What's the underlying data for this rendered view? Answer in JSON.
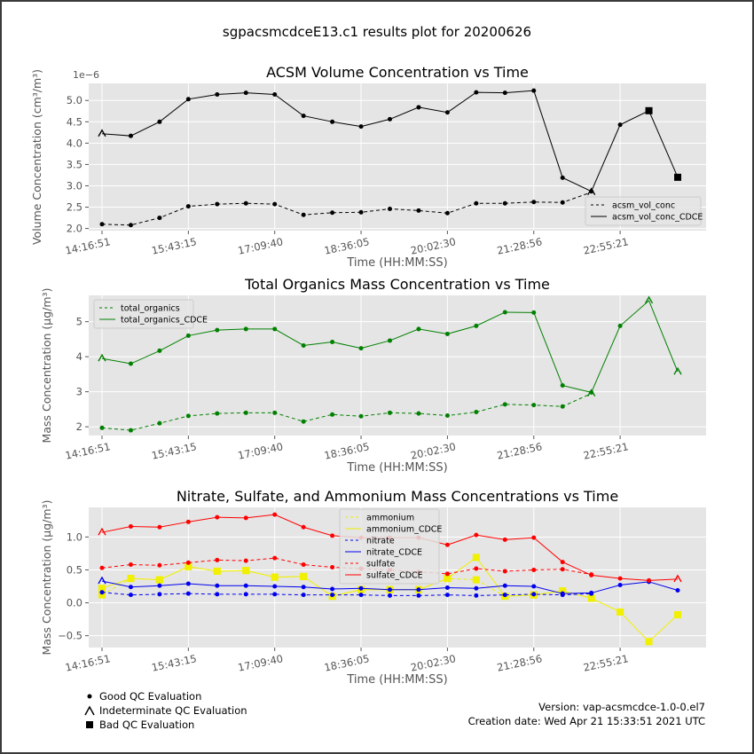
{
  "figure": {
    "suptitle": "sgpacsmcdceE13.c1 results plot for 20200626",
    "qc_legend": [
      {
        "marker": "dot",
        "label": "Good QC Evaluation"
      },
      {
        "marker": "caret",
        "label": "Indeterminate QC Evaluation"
      },
      {
        "marker": "square",
        "label": "Bad QC Evaluation"
      }
    ],
    "version": "Version: vap-acsmcdce-1.0-0.el7",
    "creation_date": "Creation date: Wed Apr 21 15:33:51 2021 UTC"
  },
  "chart_data": [
    {
      "type": "line",
      "title": "ACSM Volume Concentration vs Time",
      "xlabel": "Time (HH:MM:SS)",
      "ylabel": "Volume Concentration (cm³/m³)",
      "offset_text": "1e−6",
      "x_tick_labels": [
        "14:16:51",
        "15:43:15",
        "17:09:40",
        "18:36:05",
        "20:02:30",
        "21:28:56",
        "22:55:21"
      ],
      "y_ticks": [
        "2.0",
        "2.5",
        "3.0",
        "3.5",
        "4.0",
        "4.5",
        "5.0"
      ],
      "ylim": [
        1.95,
        5.4
      ],
      "grid": true,
      "legend_position": "lower-right",
      "series": [
        {
          "name": "acsm_vol_conc",
          "color": "#000000",
          "dashed": true,
          "values": [
            2.1,
            2.08,
            2.25,
            2.52,
            2.57,
            2.59,
            2.57,
            2.32,
            2.37,
            2.38,
            2.46,
            2.42,
            2.36,
            2.59,
            2.59,
            2.62,
            2.61,
            2.85
          ],
          "qc": [
            "good",
            "good",
            "good",
            "good",
            "good",
            "good",
            "good",
            "good",
            "good",
            "good",
            "good",
            "good",
            "good",
            "good",
            "good",
            "good",
            "good",
            "indeterminate"
          ]
        },
        {
          "name": "acsm_vol_conc_CDCE",
          "color": "#000000",
          "dashed": false,
          "values": [
            4.22,
            4.17,
            4.5,
            5.03,
            5.14,
            5.18,
            5.14,
            4.64,
            4.5,
            4.39,
            4.56,
            4.84,
            4.72,
            5.19,
            5.18,
            5.23,
            3.19,
            2.87,
            4.43,
            4.76,
            3.2
          ],
          "qc": [
            "indeterminate",
            "good",
            "good",
            "good",
            "good",
            "good",
            "good",
            "good",
            "good",
            "good",
            "good",
            "good",
            "good",
            "good",
            "good",
            "good",
            "good",
            "good",
            "good",
            "bad",
            "bad"
          ]
        }
      ]
    },
    {
      "type": "line",
      "title": "Total Organics Mass Concentration vs Time",
      "xlabel": "Time (HH:MM:SS)",
      "ylabel": "Mass Concentration (μg/m³)",
      "x_tick_labels": [
        "14:16:51",
        "15:43:15",
        "17:09:40",
        "18:36:05",
        "20:02:30",
        "21:28:56",
        "22:55:21"
      ],
      "y_ticks": [
        "2",
        "3",
        "4",
        "5"
      ],
      "ylim": [
        1.75,
        5.75
      ],
      "grid": true,
      "legend_position": "top-left",
      "series": [
        {
          "name": "total_organics",
          "color": "#008000",
          "dashed": true,
          "values": [
            1.97,
            1.9,
            2.1,
            2.31,
            2.38,
            2.4,
            2.4,
            2.15,
            2.35,
            2.3,
            2.4,
            2.38,
            2.32,
            2.42,
            2.64,
            2.62,
            2.58,
            2.95
          ],
          "qc": [
            "good",
            "good",
            "good",
            "good",
            "good",
            "good",
            "good",
            "good",
            "good",
            "good",
            "good",
            "good",
            "good",
            "good",
            "good",
            "good",
            "good",
            "indeterminate"
          ]
        },
        {
          "name": "total_organics_CDCE",
          "color": "#008000",
          "dashed": false,
          "values": [
            3.95,
            3.8,
            4.17,
            4.6,
            4.76,
            4.79,
            4.79,
            4.32,
            4.42,
            4.24,
            4.46,
            4.79,
            4.65,
            4.88,
            5.27,
            5.26,
            3.18,
            2.98,
            4.88,
            5.6,
            3.57
          ],
          "qc": [
            "indeterminate",
            "good",
            "good",
            "good",
            "good",
            "good",
            "good",
            "good",
            "good",
            "good",
            "good",
            "good",
            "good",
            "good",
            "good",
            "good",
            "good",
            "good",
            "good",
            "indeterminate",
            "indeterminate"
          ]
        }
      ]
    },
    {
      "type": "line",
      "title": "Nitrate, Sulfate, and Ammonium Mass Concentrations vs Time",
      "xlabel": "Time (HH:MM:SS)",
      "ylabel": "Mass Concentration (μg/m³)",
      "x_tick_labels": [
        "14:16:51",
        "15:43:15",
        "17:09:40",
        "18:36:05",
        "20:02:30",
        "21:28:56",
        "22:55:21"
      ],
      "y_ticks": [
        "−0.5",
        "0.0",
        "0.5",
        "1.0"
      ],
      "ylim": [
        -0.68,
        1.45
      ],
      "grid": true,
      "legend_position": "top-center",
      "series": [
        {
          "name": "ammonium",
          "color": "#f0f000",
          "dashed": true,
          "values": [
            0.12,
            0.37,
            0.35,
            0.55,
            0.48,
            0.49,
            0.39,
            0.4,
            0.1,
            0.2,
            0.2,
            0.2,
            0.37,
            0.35,
            0.1,
            0.12,
            0.18,
            0.07
          ],
          "qc": [
            "bad",
            "bad",
            "bad",
            "bad",
            "bad",
            "bad",
            "bad",
            "bad",
            "bad",
            "bad",
            "bad",
            "bad",
            "bad",
            "bad",
            "bad",
            "bad",
            "bad",
            "bad"
          ]
        },
        {
          "name": "ammonium_CDCE",
          "color": "#f0f000",
          "dashed": false,
          "values": [
            0.22,
            0.37,
            0.35,
            0.55,
            0.48,
            0.49,
            0.39,
            0.4,
            0.1,
            0.2,
            0.2,
            0.2,
            0.37,
            0.69,
            0.1,
            0.12,
            0.18,
            0.07,
            -0.14,
            -0.59,
            -0.18
          ],
          "qc": [
            "bad",
            "bad",
            "bad",
            "bad",
            "bad",
            "bad",
            "bad",
            "bad",
            "bad",
            "bad",
            "bad",
            "bad",
            "bad",
            "bad",
            "bad",
            "bad",
            "bad",
            "bad",
            "bad",
            "bad",
            "bad"
          ]
        },
        {
          "name": "nitrate",
          "color": "#0000ee",
          "dashed": true,
          "values": [
            0.16,
            0.12,
            0.13,
            0.14,
            0.13,
            0.13,
            0.13,
            0.12,
            0.12,
            0.12,
            0.11,
            0.11,
            0.12,
            0.11,
            0.12,
            0.13,
            0.12,
            0.14
          ],
          "qc": [
            "good",
            "good",
            "good",
            "good",
            "good",
            "good",
            "good",
            "good",
            "good",
            "good",
            "good",
            "good",
            "good",
            "good",
            "good",
            "good",
            "good",
            "good"
          ]
        },
        {
          "name": "nitrate_CDCE",
          "color": "#0000ee",
          "dashed": false,
          "values": [
            0.33,
            0.24,
            0.26,
            0.29,
            0.26,
            0.26,
            0.25,
            0.24,
            0.21,
            0.22,
            0.2,
            0.2,
            0.23,
            0.22,
            0.26,
            0.25,
            0.14,
            0.15,
            0.27,
            0.32,
            0.19
          ],
          "qc": [
            "indeterminate",
            "good",
            "good",
            "good",
            "good",
            "good",
            "good",
            "good",
            "good",
            "good",
            "good",
            "good",
            "good",
            "good",
            "good",
            "good",
            "good",
            "good",
            "good",
            "good",
            "good"
          ]
        },
        {
          "name": "sulfate",
          "color": "#ff0000",
          "dashed": true,
          "values": [
            0.53,
            0.58,
            0.57,
            0.61,
            0.65,
            0.64,
            0.68,
            0.58,
            0.54,
            0.52,
            0.5,
            0.47,
            0.44,
            0.52,
            0.48,
            0.5,
            0.51,
            0.43
          ],
          "qc": [
            "good",
            "good",
            "good",
            "good",
            "good",
            "good",
            "good",
            "good",
            "good",
            "good",
            "good",
            "good",
            "good",
            "good",
            "good",
            "good",
            "good",
            "good"
          ]
        },
        {
          "name": "sulfate_CDCE",
          "color": "#ff0000",
          "dashed": false,
          "values": [
            1.07,
            1.16,
            1.15,
            1.23,
            1.3,
            1.29,
            1.34,
            1.15,
            1.02,
            0.99,
            0.99,
            0.99,
            0.88,
            1.03,
            0.96,
            0.99,
            0.62,
            0.42,
            0.37,
            0.34,
            0.36
          ],
          "qc": [
            "indeterminate",
            "good",
            "good",
            "good",
            "good",
            "good",
            "good",
            "good",
            "good",
            "good",
            "good",
            "good",
            "good",
            "good",
            "good",
            "good",
            "good",
            "good",
            "good",
            "good",
            "indeterminate"
          ]
        }
      ]
    }
  ]
}
